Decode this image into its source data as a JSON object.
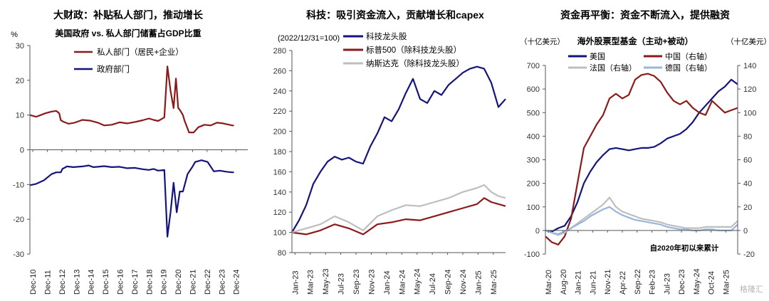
{
  "watermark": "格隆汇",
  "colors": {
    "red": "#8B1A1A",
    "navy": "#14147A",
    "gray": "#BEBEBE",
    "lightblue": "#98B6DD",
    "axis": "#555555"
  },
  "chart_data": [
    {
      "type": "line",
      "title": "大财政：补贴私人部门，推动增长",
      "subtitle": "美国政府 vs. 私人部门储蓄占GDP比重",
      "yunit": "%",
      "ylim": [
        -30,
        30
      ],
      "yticks": [
        -30,
        -20,
        -10,
        0,
        10,
        20,
        30
      ],
      "xticks": [
        "Dec-10",
        "Dec-11",
        "Dec-12",
        "Dec-13",
        "Dec-14",
        "Dec-15",
        "Dec-16",
        "Dec-17",
        "Dec-18",
        "Dec-19",
        "Dec-20",
        "Dec-21",
        "Dec-22",
        "Dec-23",
        "Dec-24"
      ],
      "series": [
        {
          "name": "私人部门（居民+企业）",
          "color": "red",
          "x": [
            2010.9,
            2011.3,
            2011.6,
            2011.9,
            2012.3,
            2012.6,
            2012.8,
            2012.9,
            2013.1,
            2013.4,
            2013.8,
            2014.3,
            2014.8,
            2015.3,
            2015.7,
            2016.2,
            2016.7,
            2017.2,
            2017.7,
            2018.2,
            2018.6,
            2018.9,
            2019.2,
            2019.6,
            2019.8,
            2020.0,
            2020.2,
            2020.35,
            2020.5,
            2020.6,
            2020.8,
            2020.9,
            2021.2,
            2021.5,
            2021.8,
            2022.2,
            2022.6,
            2023.0,
            2023.4,
            2023.8,
            2024.0,
            2024.1
          ],
          "y": [
            10.0,
            9.5,
            10.0,
            10.5,
            11.0,
            11.2,
            10.5,
            8.5,
            8.0,
            7.5,
            7.8,
            8.6,
            8.4,
            7.8,
            7.0,
            7.2,
            7.9,
            7.6,
            8.0,
            8.5,
            9.0,
            8.6,
            8.3,
            9.3,
            24.0,
            17.0,
            12.0,
            20.5,
            12.0,
            11.5,
            10.0,
            8.5,
            5.0,
            5.0,
            6.5,
            7.2,
            7.0,
            7.8,
            7.6,
            7.2,
            7.0,
            7.0
          ]
        },
        {
          "name": "政府部门",
          "color": "navy",
          "x": [
            2010.9,
            2011.3,
            2011.8,
            2012.3,
            2012.6,
            2012.9,
            2013.0,
            2013.3,
            2013.7,
            2014.3,
            2014.7,
            2015.0,
            2015.3,
            2015.7,
            2016.2,
            2016.7,
            2017.2,
            2017.7,
            2018.2,
            2018.6,
            2018.9,
            2019.2,
            2019.6,
            2019.8,
            2020.0,
            2020.2,
            2020.4,
            2020.6,
            2020.8,
            2021.1,
            2021.4,
            2021.6,
            2022.0,
            2022.4,
            2022.8,
            2023.2,
            2023.6,
            2024.0,
            2024.1
          ],
          "y": [
            -10.2,
            -9.8,
            -8.8,
            -7.0,
            -6.5,
            -6.5,
            -5.5,
            -4.8,
            -5.0,
            -4.8,
            -4.5,
            -5.0,
            -4.9,
            -4.7,
            -5.0,
            -4.9,
            -5.3,
            -5.2,
            -5.6,
            -5.8,
            -5.5,
            -6.0,
            -5.8,
            -25.0,
            -18.0,
            -9.5,
            -18.0,
            -12.0,
            -12.0,
            -7.0,
            -5.0,
            -3.5,
            -3.0,
            -3.5,
            -6.2,
            -6.0,
            -6.3,
            -6.5,
            -6.5
          ]
        }
      ],
      "xdomain": [
        2010.9,
        2025.0
      ]
    },
    {
      "type": "line",
      "title": "科技：吸引资金流入，贡献增长和capex",
      "subtitle": "(2022/12/31=100)",
      "ylim": [
        80,
        280
      ],
      "yticks": [
        80,
        100,
        120,
        140,
        160,
        180,
        200,
        220,
        240,
        260,
        280
      ],
      "xticks": [
        "Jan-23",
        "Mar-23",
        "May-23",
        "Jul-23",
        "Sep-23",
        "Nov-23",
        "Jan-24",
        "Mar-24",
        "May-24",
        "Jul-24",
        "Sep-24",
        "Nov-24",
        "Jan-25",
        "Mar-25"
      ],
      "series": [
        {
          "name": "科技龙头股",
          "color": "navy",
          "x": [
            0,
            1,
            2,
            3,
            4,
            5,
            6,
            7,
            8,
            9,
            10,
            11,
            12,
            13,
            14,
            15,
            16,
            17,
            18,
            19,
            20,
            21,
            22,
            23,
            24,
            25,
            26,
            27,
            28,
            29,
            30
          ],
          "y": [
            100,
            112,
            127,
            148,
            160,
            170,
            175,
            172,
            174,
            170,
            168,
            185,
            198,
            214,
            210,
            222,
            238,
            252,
            232,
            228,
            240,
            236,
            246,
            252,
            258,
            262,
            264,
            262,
            248,
            224,
            232
          ]
        },
        {
          "name": "标普500（除科技龙头股）",
          "color": "red",
          "x": [
            0,
            2,
            4,
            6,
            8,
            10,
            12,
            14,
            16,
            18,
            20,
            22,
            24,
            26,
            27,
            28,
            29,
            30
          ],
          "y": [
            100,
            98,
            102,
            108,
            104,
            98,
            108,
            110,
            113,
            112,
            116,
            120,
            124,
            128,
            134,
            130,
            128,
            126
          ]
        },
        {
          "name": "纳斯达克（除科技龙头股）",
          "color": "gray",
          "x": [
            0,
            2,
            4,
            6,
            8,
            10,
            12,
            14,
            16,
            18,
            20,
            22,
            24,
            26,
            27,
            28,
            29,
            30
          ],
          "y": [
            100,
            104,
            108,
            116,
            110,
            102,
            116,
            122,
            127,
            126,
            130,
            134,
            140,
            144,
            147,
            140,
            136,
            134
          ]
        }
      ],
      "xdomain": [
        0,
        30
      ]
    },
    {
      "type": "line",
      "title": "资金再平衡：资金不断流入，提供融资",
      "subtitle": "海外股票型基金（主动+被动）",
      "ylabel_left": "（十亿美元）",
      "ylabel_right": "（十亿美元）",
      "note": "自2020年初以来累计",
      "ylim": [
        -100,
        700
      ],
      "yticks": [
        -100,
        0,
        100,
        200,
        300,
        400,
        500,
        600,
        700
      ],
      "ylim_right": [
        -20,
        140
      ],
      "yticks_right": [
        -20,
        0,
        20,
        40,
        60,
        80,
        100,
        120,
        140
      ],
      "xticks": [
        "Mar-20",
        "Aug-20",
        "Jan-21",
        "Jun-21",
        "Nov-21",
        "Apr-22",
        "Sep-22",
        "Feb-23",
        "Jul-23",
        "Dec-23",
        "May-24",
        "Oct-24",
        "Mar-25"
      ],
      "series": [
        {
          "name": "美国",
          "color": "navy",
          "axis": "left",
          "x": [
            0,
            2,
            4,
            6,
            8,
            10,
            12,
            14,
            16,
            18,
            20,
            22,
            24,
            26,
            28,
            30,
            32,
            34,
            36,
            38,
            40,
            42,
            44,
            46,
            48,
            50,
            52,
            54,
            56,
            58,
            60
          ],
          "y": [
            0,
            -5,
            10,
            20,
            60,
            120,
            200,
            250,
            290,
            320,
            345,
            350,
            345,
            340,
            345,
            350,
            350,
            355,
            370,
            390,
            400,
            410,
            430,
            460,
            500,
            530,
            560,
            590,
            610,
            640,
            620
          ]
        },
        {
          "name": "中国（右轴）",
          "color": "red",
          "axis": "right",
          "x": [
            0,
            2,
            4,
            6,
            8,
            10,
            12,
            14,
            16,
            18,
            20,
            22,
            24,
            26,
            28,
            30,
            32,
            34,
            36,
            38,
            40,
            42,
            44,
            46,
            48,
            50,
            52,
            54,
            56,
            58,
            60
          ],
          "y": [
            -5,
            -10,
            -12,
            -5,
            10,
            40,
            70,
            80,
            90,
            98,
            112,
            116,
            112,
            115,
            128,
            132,
            133,
            131,
            126,
            117,
            110,
            107,
            110,
            104,
            100,
            98,
            110,
            105,
            100,
            102,
            104
          ]
        },
        {
          "name": "法国（右轴）",
          "color": "gray",
          "axis": "right",
          "x": [
            0,
            2,
            4,
            6,
            8,
            10,
            12,
            14,
            16,
            18,
            20,
            22,
            24,
            26,
            28,
            30,
            32,
            34,
            36,
            38,
            40,
            42,
            44,
            46,
            48,
            50,
            52,
            54,
            56,
            58,
            60
          ],
          "y": [
            0,
            -2,
            -4,
            -2,
            2,
            6,
            10,
            14,
            18,
            22,
            28,
            20,
            16,
            14,
            12,
            10,
            9,
            8,
            7,
            5,
            4,
            3,
            2,
            2,
            2,
            3,
            3,
            3,
            3,
            3,
            8
          ]
        },
        {
          "name": "德国（右轴）",
          "color": "lightblue",
          "axis": "right",
          "x": [
            0,
            2,
            4,
            6,
            8,
            10,
            12,
            14,
            16,
            18,
            20,
            22,
            24,
            26,
            28,
            30,
            32,
            34,
            36,
            38,
            40,
            42,
            44,
            46,
            48,
            50,
            52,
            54,
            56,
            58,
            60
          ],
          "y": [
            0,
            -2,
            -3,
            -1,
            2,
            5,
            8,
            12,
            15,
            18,
            20,
            16,
            13,
            11,
            9,
            8,
            7,
            6,
            5,
            3,
            2,
            1,
            1,
            0,
            0,
            1,
            1,
            0,
            0,
            0,
            5
          ]
        }
      ],
      "xdomain": [
        0,
        60
      ]
    }
  ]
}
